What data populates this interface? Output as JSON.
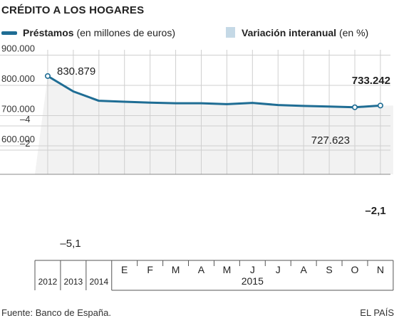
{
  "title": "CRÉDITO A LOS HOGARES",
  "legend": {
    "line_bold": "Préstamos",
    "line_rest": " (en millones de euros)",
    "bar_bold": "Variación interanual",
    "bar_rest": " (en %)"
  },
  "footer": {
    "source": "Fuente: Banco de España.",
    "brand": "EL PAÍS"
  },
  "colors": {
    "line": "#1f6d94",
    "bar": "#c5d9e6",
    "bar_highlight": "#1f6d94",
    "area": "#f2f2f2",
    "grid": "#cfcfcf"
  },
  "chart_data": {
    "type": "line+bar",
    "categories": [
      "2012",
      "2013",
      "2014",
      "E",
      "F",
      "M",
      "A",
      "M",
      "J",
      "J",
      "A",
      "S",
      "O",
      "N"
    ],
    "year_group_label": "2015",
    "line_series": {
      "name": "Préstamos",
      "values": [
        830879,
        780000,
        749000,
        746000,
        743000,
        741000,
        741000,
        738000,
        742000,
        735000,
        732000,
        730000,
        727623,
        733242
      ]
    },
    "bar_series": {
      "name": "Variación interanual",
      "values": [
        -3.8,
        -5.1,
        -3.5,
        -3.4,
        -3.3,
        -3.1,
        -2.6,
        -2.8,
        -2.7,
        -2.6,
        -2.5,
        -2.6,
        -2.4,
        -2.1
      ]
    },
    "line_yticks": [
      "900.000",
      "800.000",
      "700.000",
      "600.000"
    ],
    "line_ytick_values": [
      900000,
      800000,
      700000,
      600000
    ],
    "bar_yticks": [
      "–2",
      "–4"
    ],
    "bar_ytick_values": [
      -2,
      -4
    ],
    "annotations": [
      {
        "series": "line",
        "index": 0,
        "text": "830.879",
        "bold": false
      },
      {
        "series": "line",
        "index": 12,
        "text": "727.623",
        "bold": false
      },
      {
        "series": "line",
        "index": 13,
        "text": "733.242",
        "bold": true
      },
      {
        "series": "bar",
        "index": 1,
        "text": "–5,1",
        "bold": false
      },
      {
        "series": "bar",
        "index": 13,
        "text": "–2,1",
        "bold": true
      }
    ]
  }
}
